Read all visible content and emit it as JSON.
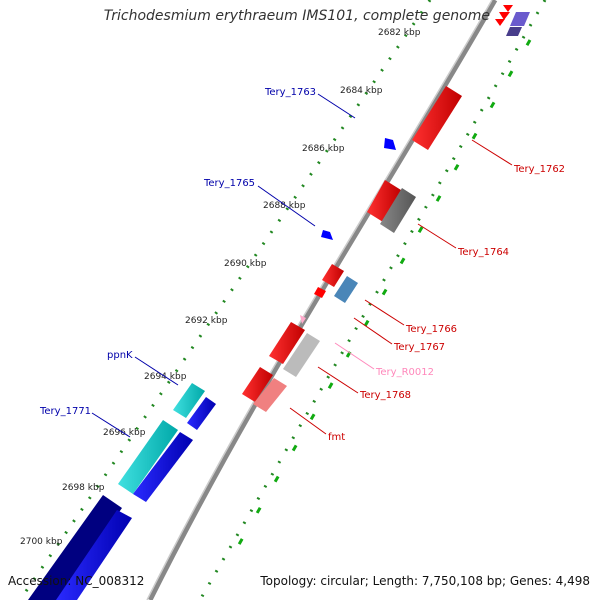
{
  "title": "Trichodesmium erythraeum IMS101, complete genome",
  "accession": "Accession: NC_008312",
  "topology": "Topology: circular; Length: 7,750,108 bp; Genes: 4,498",
  "scale_ticks": [
    "2682 kbp",
    "2684 kbp",
    "2686 kbp",
    "2688 kbp",
    "2690 kbp",
    "2692 kbp",
    "2694 kbp",
    "2696 kbp",
    "2698 kbp",
    "2700 kbp"
  ],
  "gene_labels_left": [
    "Tery_1763",
    "Tery_1765",
    "ppnK",
    "Tery_1771"
  ],
  "gene_labels_right": [
    "Tery_1762",
    "Tery_1764",
    "Tery_1766",
    "Tery_1767",
    "Tery_R0012",
    "Tery_1768",
    "fmt"
  ],
  "colors": {
    "forward_strand": "#ff0000",
    "reverse_strand": "#0000ff",
    "rna": "#ffaacc",
    "cyan_gene": "#00cccc",
    "navy_gene": "#000080",
    "gray_gene": "#777777",
    "steel_gene": "#4a86b8",
    "left_label": "#0000aa",
    "right_label": "#cc0000",
    "rna_label": "#ff88bb",
    "tick_dots": "#228822"
  }
}
